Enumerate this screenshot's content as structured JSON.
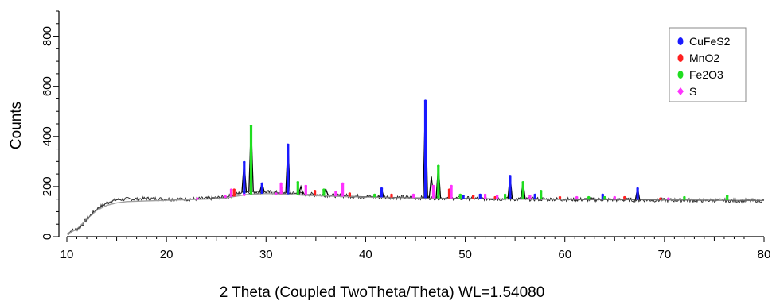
{
  "chart_data": {
    "type": "line",
    "title": "",
    "xlabel": "2 Theta (Coupled TwoTheta/Theta) WL=1.54080",
    "ylabel": "Counts",
    "xlim": [
      10,
      80
    ],
    "ylim": [
      0,
      900
    ],
    "x_ticks": [
      10,
      20,
      30,
      40,
      50,
      60,
      70,
      80
    ],
    "y_ticks": [
      0,
      200,
      400,
      600,
      800
    ],
    "grid": false,
    "legend_position": "top-right",
    "pattern": {
      "x": [
        10,
        10.5,
        11,
        11.5,
        12,
        13,
        14,
        15,
        16,
        18,
        20,
        22,
        24,
        26,
        27,
        28,
        30,
        32,
        34,
        36,
        38,
        40,
        42,
        44,
        46,
        48,
        50,
        52,
        54,
        56,
        58,
        60,
        62,
        64,
        66,
        68,
        70,
        72,
        74,
        76,
        78,
        80
      ],
      "y": [
        10,
        25,
        30,
        45,
        70,
        110,
        135,
        148,
        150,
        152,
        150,
        150,
        152,
        158,
        170,
        180,
        178,
        175,
        170,
        166,
        163,
        160,
        158,
        156,
        155,
        154,
        153,
        152,
        151,
        150,
        150,
        149,
        148,
        148,
        147,
        147,
        146,
        146,
        145,
        145,
        144,
        144
      ]
    },
    "background": {
      "x": [
        10,
        11,
        12,
        13,
        14,
        15,
        16,
        18,
        20,
        24,
        26,
        28,
        30,
        32,
        34,
        38,
        42,
        46,
        50,
        55,
        60,
        65,
        70,
        75,
        80
      ],
      "y": [
        10,
        30,
        70,
        105,
        125,
        135,
        140,
        143,
        145,
        150,
        155,
        168,
        172,
        170,
        165,
        160,
        157,
        154,
        152,
        150,
        149,
        148,
        147,
        146,
        145
      ]
    },
    "peaks": [
      {
        "x": 27.8,
        "y": 300
      },
      {
        "x": 28.5,
        "y": 445
      },
      {
        "x": 29.6,
        "y": 215
      },
      {
        "x": 32.2,
        "y": 370
      },
      {
        "x": 33.5,
        "y": 200
      },
      {
        "x": 36.0,
        "y": 190
      },
      {
        "x": 41.6,
        "y": 190
      },
      {
        "x": 46.0,
        "y": 545
      },
      {
        "x": 46.6,
        "y": 240
      },
      {
        "x": 47.3,
        "y": 285
      },
      {
        "x": 54.5,
        "y": 245
      },
      {
        "x": 55.8,
        "y": 220
      },
      {
        "x": 67.3,
        "y": 195
      }
    ],
    "series": [
      {
        "name": "CuFeS2",
        "color": "#1a1aff",
        "x": [
          27.8,
          29.6,
          32.2,
          41.6,
          46.0,
          49.8,
          51.5,
          54.5,
          57.0,
          63.8,
          67.3
        ],
        "y": [
          300,
          215,
          370,
          195,
          545,
          165,
          170,
          245,
          170,
          170,
          195
        ]
      },
      {
        "name": "MnO2",
        "color": "#ff2020",
        "x": [
          26.8,
          31.5,
          34.9,
          38.4,
          42.6,
          48.4,
          50.8,
          53.0,
          59.5,
          66.0,
          69.6
        ],
        "y": [
          190,
          200,
          185,
          175,
          170,
          190,
          165,
          160,
          160,
          160,
          155
        ]
      },
      {
        "name": "Fe2O3",
        "color": "#20dd20",
        "x": [
          28.5,
          33.2,
          35.8,
          40.9,
          47.3,
          49.5,
          54.0,
          55.8,
          57.6,
          62.4,
          64.0,
          72.0,
          76.3
        ],
        "y": [
          445,
          220,
          190,
          170,
          285,
          170,
          170,
          220,
          185,
          160,
          160,
          160,
          165
        ]
      },
      {
        "name": "S",
        "color": "#ff33ff",
        "x": [
          23.1,
          25.9,
          26.5,
          27.8,
          31.0,
          31.5,
          34.0,
          37.0,
          37.7,
          44.8,
          46.8,
          48.6,
          52.0,
          53.2,
          56.5,
          61.2,
          65.0,
          70.4
        ],
        "y": [
          155,
          165,
          190,
          170,
          175,
          215,
          205,
          180,
          215,
          170,
          205,
          205,
          170,
          165,
          165,
          160,
          160,
          155
        ]
      }
    ]
  }
}
